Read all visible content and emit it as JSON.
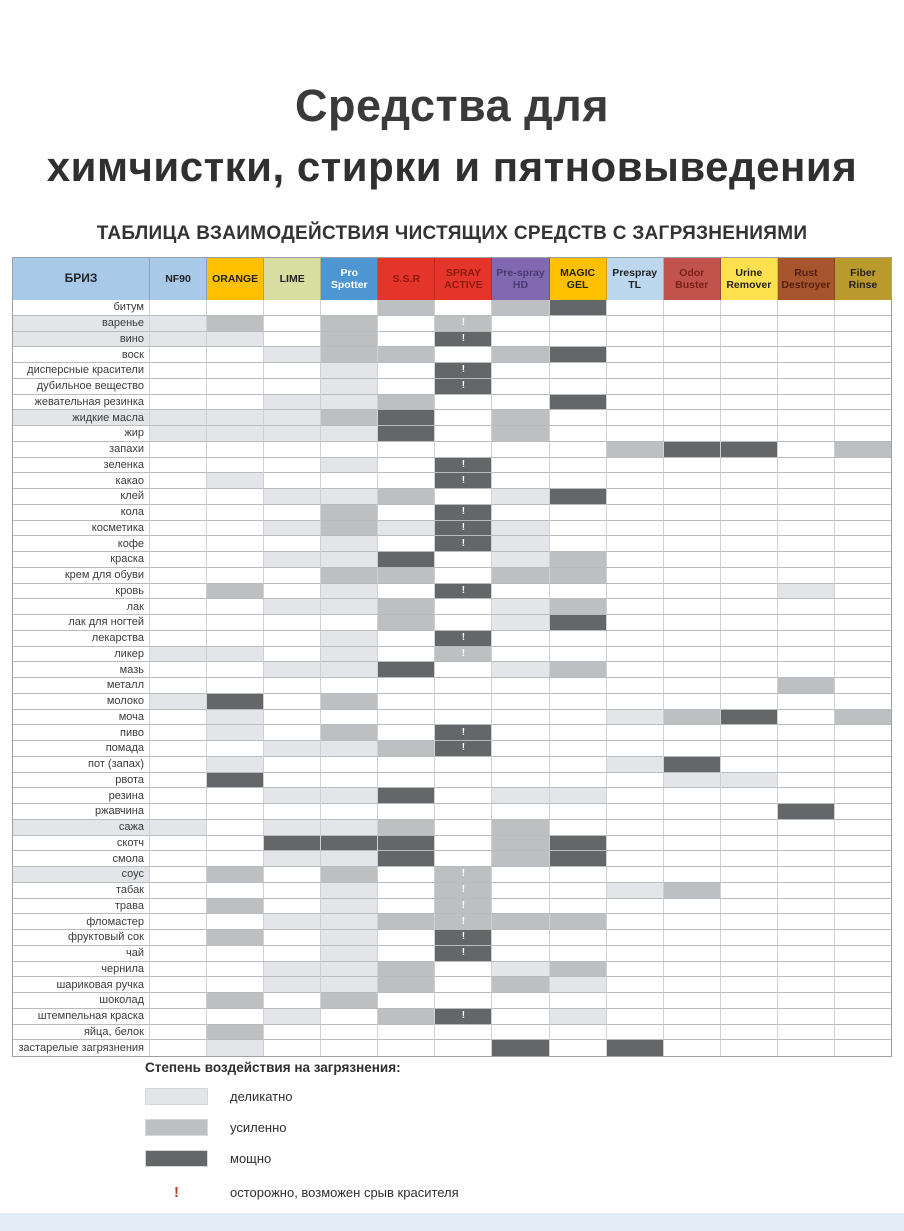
{
  "title": {
    "line1": "Средства для",
    "line2": "химчистки, стирки и пятновыведения"
  },
  "subtitle": "ТАБЛИЦА ВЗАИМОДЕЙСТВИЯ ЧИСТЯЩИХ СРЕДСТВ С ЗАГРЯЗНЕНИЯМИ",
  "levels": {
    "0": "#ffffff",
    "1": "#e3e5e8",
    "2": "#bdbfc1",
    "3": "#656668"
  },
  "warn_color_in_cell": "#ffffff",
  "warn_color_legend": "#c0392b",
  "chart_data": {
    "type": "table",
    "value_encoding": "0 = no effect (white), 1 = деликатно (light gray), 2 = усиленно (medium gray), 3 = мощно (dark gray), '!' = осторожно, возможен срыв красителя",
    "columns": [
      {
        "label": "БРИЗ",
        "bg": "#a9c9e8",
        "fg": "#222222"
      },
      {
        "label": "NF90",
        "bg": "#a9c9e8",
        "fg": "#222222"
      },
      {
        "label": "ORANGE",
        "bg": "#ffc000",
        "fg": "#222222"
      },
      {
        "label": "LIME",
        "bg": "#d8dea2",
        "fg": "#222222"
      },
      {
        "label": "Pro Spotter",
        "bg": "#4e96d2",
        "fg": "#ffffff"
      },
      {
        "label": "S.S.R",
        "bg": "#e5352b",
        "fg": "#8c1a10"
      },
      {
        "label": "SPRAY ACTIVE",
        "bg": "#e5352b",
        "fg": "#8c1a10"
      },
      {
        "label": "Pre-spray HD",
        "bg": "#8168b0",
        "fg": "#4b3b73"
      },
      {
        "label": "MAGIC GEL",
        "bg": "#ffc000",
        "fg": "#222222"
      },
      {
        "label": "Prespray TL",
        "bg": "#bdd7ee",
        "fg": "#222222"
      },
      {
        "label": "Odor Buster",
        "bg": "#c2524c",
        "fg": "#7a201b"
      },
      {
        "label": "Urine Remover",
        "bg": "#ffe14f",
        "fg": "#222222"
      },
      {
        "label": "Rust Destroyer",
        "bg": "#a6552d",
        "fg": "#541d10"
      },
      {
        "label": "Fiber Rinse",
        "bg": "#bb9a2d",
        "fg": "#222222"
      }
    ],
    "rows": [
      {
        "label": "битум",
        "cells": [
          0,
          0,
          0,
          0,
          0,
          2,
          0,
          2,
          3,
          0,
          0,
          0,
          0,
          0
        ]
      },
      {
        "label": "варенье",
        "cells": [
          1,
          1,
          2,
          0,
          2,
          0,
          "2!",
          0,
          0,
          0,
          0,
          0,
          0,
          0
        ]
      },
      {
        "label": "вино",
        "cells": [
          1,
          1,
          1,
          0,
          2,
          0,
          "3!",
          0,
          0,
          0,
          0,
          0,
          0,
          0
        ]
      },
      {
        "label": "воск",
        "cells": [
          0,
          0,
          0,
          1,
          2,
          2,
          0,
          2,
          3,
          0,
          0,
          0,
          0,
          0
        ]
      },
      {
        "label": "дисперсные красители",
        "cells": [
          0,
          0,
          0,
          0,
          1,
          0,
          "3!",
          0,
          0,
          0,
          0,
          0,
          0,
          0
        ]
      },
      {
        "label": "дубильное вещество",
        "cells": [
          0,
          0,
          0,
          0,
          1,
          0,
          "3!",
          0,
          0,
          0,
          0,
          0,
          0,
          0
        ]
      },
      {
        "label": "жевательная резинка",
        "cells": [
          0,
          0,
          0,
          1,
          1,
          2,
          0,
          0,
          3,
          0,
          0,
          0,
          0,
          0
        ]
      },
      {
        "label": "жидкие масла",
        "cells": [
          1,
          1,
          1,
          1,
          2,
          3,
          0,
          2,
          0,
          0,
          0,
          0,
          0,
          0
        ]
      },
      {
        "label": "жир",
        "cells": [
          0,
          1,
          1,
          1,
          1,
          3,
          0,
          2,
          0,
          0,
          0,
          0,
          0,
          0
        ]
      },
      {
        "label": "запахи",
        "cells": [
          0,
          0,
          0,
          0,
          0,
          0,
          0,
          0,
          0,
          2,
          3,
          3,
          0,
          2
        ]
      },
      {
        "label": "зеленка",
        "cells": [
          0,
          0,
          0,
          0,
          1,
          0,
          "3!",
          0,
          0,
          0,
          0,
          0,
          0,
          0
        ]
      },
      {
        "label": "какао",
        "cells": [
          0,
          0,
          1,
          0,
          0,
          0,
          "3!",
          0,
          0,
          0,
          0,
          0,
          0,
          0
        ]
      },
      {
        "label": "клей",
        "cells": [
          0,
          0,
          0,
          1,
          1,
          2,
          0,
          1,
          3,
          0,
          0,
          0,
          0,
          0
        ]
      },
      {
        "label": "кола",
        "cells": [
          0,
          0,
          0,
          0,
          2,
          0,
          "3!",
          0,
          0,
          0,
          0,
          0,
          0,
          0
        ]
      },
      {
        "label": "косметика",
        "cells": [
          0,
          0,
          0,
          1,
          2,
          1,
          "3!",
          1,
          0,
          0,
          0,
          0,
          0,
          0
        ]
      },
      {
        "label": "кофе",
        "cells": [
          0,
          0,
          0,
          0,
          1,
          0,
          "3!",
          1,
          0,
          0,
          0,
          0,
          0,
          0
        ]
      },
      {
        "label": "краска",
        "cells": [
          0,
          0,
          0,
          1,
          1,
          3,
          0,
          1,
          2,
          0,
          0,
          0,
          0,
          0
        ]
      },
      {
        "label": "крем для обуви",
        "cells": [
          0,
          0,
          0,
          0,
          2,
          2,
          0,
          2,
          2,
          0,
          0,
          0,
          0,
          0
        ]
      },
      {
        "label": "кровь",
        "cells": [
          0,
          0,
          2,
          0,
          1,
          0,
          "3!",
          0,
          0,
          0,
          0,
          0,
          1,
          0
        ]
      },
      {
        "label": "лак",
        "cells": [
          0,
          0,
          0,
          1,
          1,
          2,
          0,
          1,
          2,
          0,
          0,
          0,
          0,
          0
        ]
      },
      {
        "label": "лак для ногтей",
        "cells": [
          0,
          0,
          0,
          0,
          0,
          2,
          0,
          1,
          3,
          0,
          0,
          0,
          0,
          0
        ]
      },
      {
        "label": "лекарства",
        "cells": [
          0,
          0,
          0,
          0,
          1,
          0,
          "3!",
          0,
          0,
          0,
          0,
          0,
          0,
          0
        ]
      },
      {
        "label": "ликер",
        "cells": [
          0,
          1,
          1,
          0,
          1,
          0,
          "2!",
          0,
          0,
          0,
          0,
          0,
          0,
          0
        ]
      },
      {
        "label": "мазь",
        "cells": [
          0,
          0,
          0,
          1,
          1,
          3,
          0,
          1,
          2,
          0,
          0,
          0,
          0,
          0
        ]
      },
      {
        "label": "металл",
        "cells": [
          0,
          0,
          0,
          0,
          0,
          0,
          0,
          0,
          0,
          0,
          0,
          0,
          2,
          0
        ]
      },
      {
        "label": "молоко",
        "cells": [
          0,
          1,
          3,
          0,
          2,
          0,
          0,
          0,
          0,
          0,
          0,
          0,
          0,
          0
        ]
      },
      {
        "label": "моча",
        "cells": [
          0,
          0,
          1,
          0,
          0,
          0,
          0,
          0,
          0,
          1,
          2,
          3,
          0,
          2
        ]
      },
      {
        "label": "пиво",
        "cells": [
          0,
          0,
          1,
          0,
          2,
          0,
          "3!",
          0,
          0,
          0,
          0,
          0,
          0,
          0
        ]
      },
      {
        "label": "помада",
        "cells": [
          0,
          0,
          0,
          1,
          1,
          2,
          "3!",
          0,
          0,
          0,
          0,
          0,
          0,
          0
        ]
      },
      {
        "label": "пот (запах)",
        "cells": [
          0,
          0,
          1,
          0,
          0,
          0,
          0,
          0,
          0,
          1,
          3,
          0,
          0,
          0
        ]
      },
      {
        "label": "рвота",
        "cells": [
          0,
          0,
          3,
          0,
          0,
          0,
          0,
          0,
          0,
          0,
          1,
          1,
          0,
          0
        ]
      },
      {
        "label": "резина",
        "cells": [
          0,
          0,
          0,
          1,
          1,
          3,
          0,
          1,
          1,
          0,
          0,
          0,
          0,
          0
        ]
      },
      {
        "label": "ржавчина",
        "cells": [
          0,
          0,
          0,
          0,
          0,
          0,
          0,
          0,
          0,
          0,
          0,
          0,
          3,
          0
        ]
      },
      {
        "label": "сажа",
        "cells": [
          1,
          1,
          0,
          1,
          1,
          2,
          0,
          2,
          0,
          0,
          0,
          0,
          0,
          0
        ]
      },
      {
        "label": "скотч",
        "cells": [
          0,
          0,
          0,
          3,
          3,
          3,
          0,
          2,
          3,
          0,
          0,
          0,
          0,
          0
        ]
      },
      {
        "label": "смола",
        "cells": [
          0,
          0,
          0,
          1,
          1,
          3,
          0,
          2,
          3,
          0,
          0,
          0,
          0,
          0
        ]
      },
      {
        "label": "соус",
        "cells": [
          1,
          0,
          2,
          0,
          2,
          0,
          "2!",
          0,
          0,
          0,
          0,
          0,
          0,
          0
        ]
      },
      {
        "label": "табак",
        "cells": [
          0,
          0,
          0,
          0,
          1,
          0,
          "2!",
          0,
          0,
          1,
          2,
          0,
          0,
          0
        ]
      },
      {
        "label": "трава",
        "cells": [
          0,
          0,
          2,
          0,
          1,
          0,
          "2!",
          0,
          0,
          0,
          0,
          0,
          0,
          0
        ]
      },
      {
        "label": "фломастер",
        "cells": [
          0,
          0,
          0,
          1,
          1,
          2,
          "2!",
          2,
          2,
          0,
          0,
          0,
          0,
          0
        ]
      },
      {
        "label": "фруктовый сок",
        "cells": [
          0,
          0,
          2,
          0,
          1,
          0,
          "3!",
          0,
          0,
          0,
          0,
          0,
          0,
          0
        ]
      },
      {
        "label": "чай",
        "cells": [
          0,
          0,
          0,
          0,
          1,
          0,
          "3!",
          0,
          0,
          0,
          0,
          0,
          0,
          0
        ]
      },
      {
        "label": "чернила",
        "cells": [
          0,
          0,
          0,
          1,
          1,
          2,
          0,
          1,
          2,
          0,
          0,
          0,
          0,
          0
        ]
      },
      {
        "label": "шариковая ручка",
        "cells": [
          0,
          0,
          0,
          1,
          1,
          2,
          0,
          2,
          1,
          0,
          0,
          0,
          0,
          0
        ]
      },
      {
        "label": "шоколад",
        "cells": [
          0,
          0,
          2,
          0,
          2,
          0,
          0,
          0,
          0,
          0,
          0,
          0,
          0,
          0
        ]
      },
      {
        "label": "штемпельная краска",
        "cells": [
          0,
          0,
          0,
          1,
          0,
          2,
          "3!",
          0,
          1,
          0,
          0,
          0,
          0,
          0
        ]
      },
      {
        "label": "яйца, белок",
        "cells": [
          0,
          0,
          2,
          0,
          0,
          0,
          0,
          0,
          0,
          0,
          0,
          0,
          0,
          0
        ]
      },
      {
        "label": "застарелые загрязнения",
        "cells": [
          0,
          0,
          1,
          0,
          0,
          0,
          0,
          3,
          0,
          3,
          0,
          0,
          0,
          0
        ]
      }
    ]
  },
  "legend": {
    "title": "Степень воздействия на загрязнения:",
    "items": [
      {
        "level": "1",
        "label": "деликатно"
      },
      {
        "level": "2",
        "label": "усиленно"
      },
      {
        "level": "3",
        "label": "мощно"
      }
    ],
    "warn": {
      "symbol": "!",
      "label": "осторожно, возможен срыв красителя"
    }
  }
}
